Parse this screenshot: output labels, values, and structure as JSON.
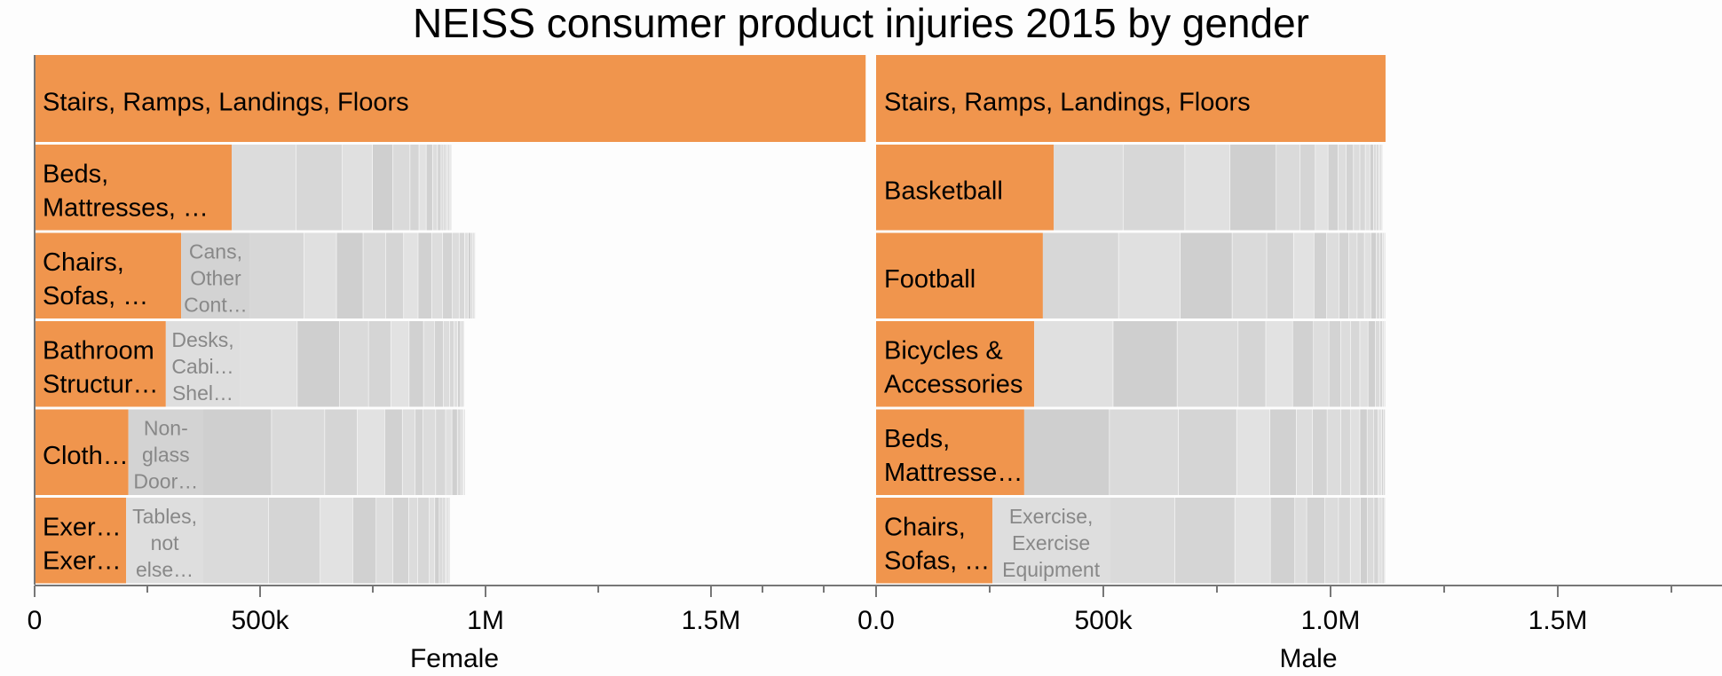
{
  "chart_data": {
    "type": "bar",
    "subtype": "stacked-horizontal-small-multiples",
    "title": "NEISS consumer product injuries 2015 by gender",
    "colors": {
      "highlight": "#f0954d",
      "segment_light": "#dedede",
      "segment_dark": "#cecece",
      "axis": "#777777",
      "text": "#000000",
      "segment_text": "#888888"
    },
    "panels": [
      {
        "name": "Female",
        "xlabel": "Female",
        "xlim": [
          0,
          1850000
        ],
        "ticks": [
          {
            "value": 0,
            "label": "0"
          },
          {
            "value": 250000,
            "label": ""
          },
          {
            "value": 500000,
            "label": "500k"
          },
          {
            "value": 750000,
            "label": ""
          },
          {
            "value": 1000000,
            "label": "1M"
          },
          {
            "value": 1250000,
            "label": ""
          },
          {
            "value": 1500000,
            "label": "1.5M"
          },
          {
            "value": 1750000,
            "label": ""
          }
        ],
        "rows": [
          {
            "label": [
              "Stairs, Ramps, Landings, Floors"
            ],
            "value": 1843000,
            "second": null,
            "rest": []
          },
          {
            "label": [
              "Beds,",
              "Mattresses, …"
            ],
            "value": 437000,
            "second": null,
            "rest": [
              143000,
              103000,
              67000,
              45000,
              38000,
              20000,
              16000,
              14000,
              11000,
              8000,
              6000,
              5000,
              4000,
              3000,
              2000,
              2000,
              2000
            ]
          },
          {
            "label": [
              "Chairs,",
              "Sofas, …"
            ],
            "value": 325000,
            "second": {
              "label": [
                "Cans,",
                "Other",
                "Cont…"
              ],
              "value": 153000
            },
            "rest": [
              120000,
              72000,
              59000,
              50000,
              40000,
              32000,
              30000,
              24000,
              22000,
              15000,
              12000,
              8000,
              6000,
              4000,
              3000,
              3000
            ]
          },
          {
            "label": [
              "Bathroom",
              "Structur…"
            ],
            "value": 291000,
            "second": {
              "label": [
                "Desks,",
                "Cabi…",
                "Shel…"
              ],
              "value": 164000
            },
            "rest": [
              128000,
              94000,
              64000,
              50000,
              40000,
              32000,
              24000,
              20000,
              14000,
              10000,
              8000,
              6000,
              4000,
              3000,
              2000
            ]
          },
          {
            "label": [
              "Cloth…"
            ],
            "value": 208000,
            "second": {
              "label": [
                "Non-",
                "glass",
                "Door…"
              ],
              "value": 166000
            },
            "rest": [
              152000,
              118000,
              72000,
              61000,
              39000,
              28000,
              18000,
              28000,
              22000,
              14000,
              12000,
              8000,
              4000,
              3000,
              2000
            ]
          },
          {
            "label": [
              "Exer…",
              "Exer…"
            ],
            "value": 203000,
            "second": {
              "label": [
                "Tables,",
                "not",
                "else…"
              ],
              "value": 171000
            },
            "rest": [
              145000,
              115000,
              72000,
              52000,
              37000,
              35000,
              20000,
              26000,
              12000,
              10000,
              8000,
              5000,
              4000,
              3000,
              2000,
              1000
            ]
          }
        ]
      },
      {
        "name": "Male",
        "xlabel": "Male",
        "xlim": [
          0,
          1850000
        ],
        "ticks": [
          {
            "value": -250000,
            "label": ""
          },
          {
            "value": 0,
            "label": "0.0"
          },
          {
            "value": 250000,
            "label": ""
          },
          {
            "value": 500000,
            "label": "500k"
          },
          {
            "value": 750000,
            "label": ""
          },
          {
            "value": 1000000,
            "label": "1.0M"
          },
          {
            "value": 1250000,
            "label": ""
          },
          {
            "value": 1500000,
            "label": "1.5M"
          },
          {
            "value": 1750000,
            "label": ""
          }
        ],
        "rows": [
          {
            "label": [
              "Stairs, Ramps, Landings, Floors"
            ],
            "value": 1121000,
            "second": null,
            "rest": []
          },
          {
            "label": [
              "Basketball"
            ],
            "value": 391000,
            "second": null,
            "rest": [
              153000,
              136000,
              99000,
              102000,
              52000,
              34000,
              28000,
              22000,
              18000,
              16000,
              14000,
              12000,
              10000,
              8000,
              6000,
              5000,
              4000,
              3000,
              2000
            ]
          },
          {
            "label": [
              "Football"
            ],
            "value": 367000,
            "second": null,
            "rest": [
              167000,
              136000,
              114000,
              76000,
              59000,
              45000,
              28000,
              27000,
              22000,
              18000,
              16000,
              14000,
              12000,
              8000,
              6000,
              4000,
              2000
            ]
          },
          {
            "label": [
              "Bicycles &",
              "Accessories"
            ],
            "value": 348000,
            "second": null,
            "rest": [
              174000,
              141000,
              134000,
              61000,
              59000,
              46000,
              34000,
              26000,
              22000,
              20000,
              18000,
              16000,
              10000,
              6000,
              4000,
              2000
            ]
          },
          {
            "label": [
              "Beds,",
              "Mattresse…"
            ],
            "value": 326000,
            "second": null,
            "rest": [
              188000,
              152000,
              128000,
              73000,
              58000,
              36000,
              32000,
              30000,
              22000,
              20000,
              16000,
              14000,
              10000,
              8000,
              4000,
              4000
            ]
          },
          {
            "label": [
              "Chairs,",
              "Sofas, …"
            ],
            "value": 256000,
            "second": {
              "label": [
                "Exercise,",
                "Exercise",
                "Equipment"
              ],
              "value": 258000
            },
            "rest": [
              144000,
              132000,
              78000,
              54000,
              26000,
              40000,
              30000,
              26000,
              22000,
              16000,
              14000,
              10000,
              8000,
              4000,
              3000
            ]
          }
        ]
      }
    ]
  }
}
